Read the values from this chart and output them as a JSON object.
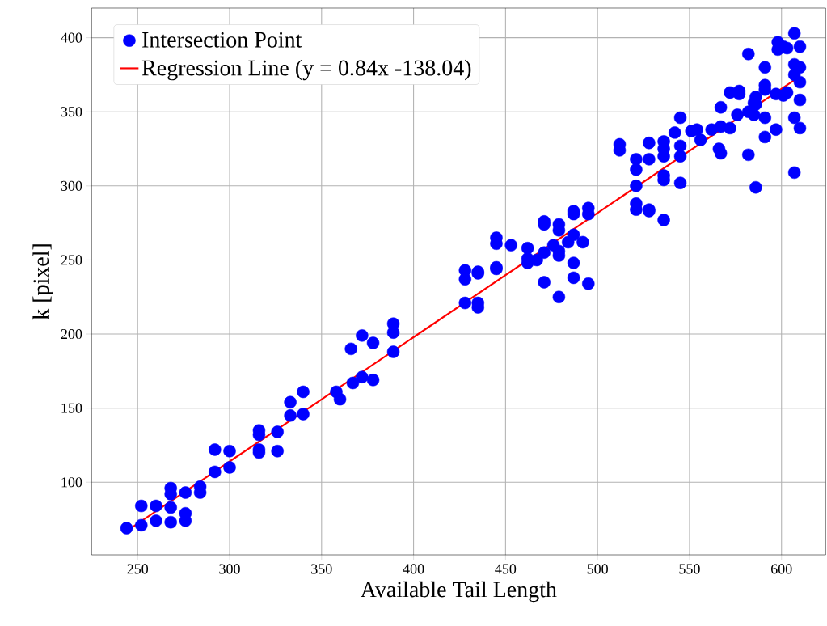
{
  "chart_data": {
    "type": "scatter",
    "xlabel": "Available Tail Length",
    "ylabel": "k [pixel]",
    "xlim": [
      225,
      624
    ],
    "ylim": [
      51,
      420
    ],
    "xticks": [
      250,
      300,
      350,
      400,
      450,
      500,
      550,
      600
    ],
    "yticks": [
      100,
      150,
      200,
      250,
      300,
      350,
      400
    ],
    "grid": true,
    "legend": "top left",
    "series": [
      {
        "name": "Intersection Point",
        "color": "#0000ff",
        "marker": "circle",
        "x": [
          244,
          252,
          252,
          260,
          260,
          268,
          268,
          268,
          268,
          276,
          276,
          276,
          284,
          284,
          292,
          292,
          300,
          300,
          316,
          316,
          316,
          316,
          326,
          326,
          333,
          333,
          340,
          340,
          358,
          360,
          366,
          367,
          372,
          372,
          378,
          378,
          389,
          389,
          389,
          428,
          428,
          428,
          435,
          435,
          435,
          435,
          445,
          445,
          445,
          445,
          453,
          462,
          462,
          462,
          467,
          471,
          471,
          471,
          471,
          476,
          479,
          479,
          479,
          479,
          479,
          484,
          487,
          487,
          487,
          487,
          487,
          492,
          495,
          495,
          495,
          512,
          512,
          521,
          521,
          521,
          521,
          521,
          528,
          528,
          528,
          528,
          536,
          536,
          536,
          536,
          536,
          536,
          542,
          545,
          545,
          545,
          545,
          551,
          554,
          556,
          562,
          566,
          567,
          567,
          567,
          572,
          572,
          576,
          577,
          577,
          582,
          582,
          582,
          585,
          585,
          586,
          586,
          586,
          591,
          591,
          591,
          591,
          591,
          597,
          597,
          598,
          598,
          601,
          601,
          603,
          603,
          607,
          607,
          607,
          607,
          607,
          610,
          610,
          610,
          610,
          610
        ],
        "values": [
          69,
          71,
          84,
          84,
          74,
          73,
          83,
          92,
          96,
          74,
          79,
          93,
          93,
          97,
          107,
          122,
          121,
          110,
          120,
          122,
          132,
          135,
          134,
          121,
          145,
          154,
          161,
          146,
          161,
          156,
          190,
          167,
          199,
          171,
          194,
          169,
          207,
          201,
          188,
          221,
          237,
          243,
          218,
          221,
          241,
          242,
          245,
          244,
          261,
          265,
          260,
          248,
          258,
          251,
          250,
          235,
          255,
          274,
          276,
          260,
          225,
          253,
          256,
          270,
          274,
          262,
          248,
          238,
          267,
          281,
          283,
          262,
          234,
          281,
          285,
          328,
          324,
          300,
          311,
          318,
          284,
          288,
          329,
          318,
          283,
          284,
          330,
          325,
          320,
          307,
          304,
          277,
          336,
          346,
          327,
          320,
          302,
          337,
          338,
          331,
          338,
          325,
          340,
          353,
          322,
          363,
          339,
          348,
          364,
          362,
          389,
          350,
          321,
          348,
          356,
          355,
          360,
          299,
          380,
          368,
          365,
          346,
          333,
          362,
          338,
          397,
          392,
          394,
          361,
          363,
          393,
          403,
          382,
          375,
          346,
          309,
          394,
          380,
          370,
          358,
          339
        ]
      },
      {
        "name": "Regression Line (y = 0.84x -138.04)",
        "type": "line",
        "color": "#ff0000",
        "line_style": "solid",
        "marker": "none",
        "x": [
          244,
          610
        ],
        "values": [
          67,
          374
        ]
      }
    ]
  }
}
